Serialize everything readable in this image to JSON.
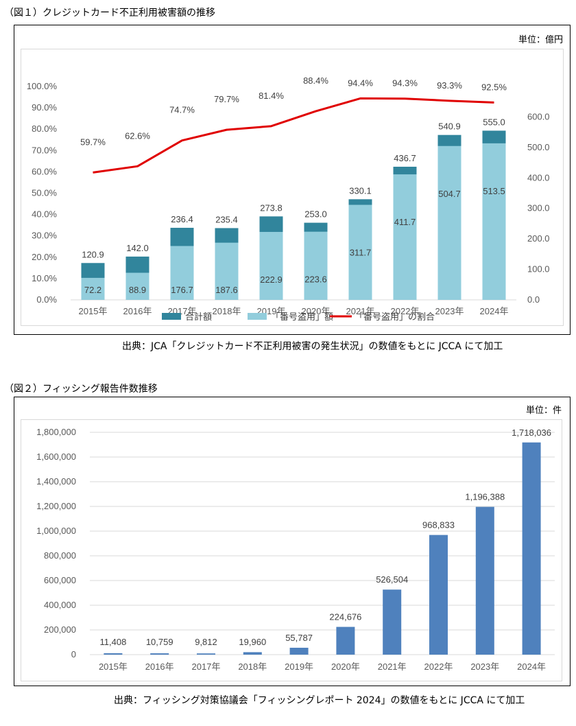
{
  "figure1": {
    "title": "（図１）クレジットカード不正利用被害額の推移",
    "unit": "単位：億円",
    "source": "出典：JCA「クレジットカード不正利用被害の発生状況」の数値をもとに JCCA にて加工",
    "chart_data": {
      "type": "bar",
      "categories": [
        "2015年",
        "2016年",
        "2017年",
        "2018年",
        "2019年",
        "2020年",
        "2021年",
        "2022年",
        "2023年",
        "2024年"
      ],
      "series": [
        {
          "name": "合計額",
          "values": [
            120.9,
            142.0,
            236.4,
            235.4,
            273.8,
            253.0,
            330.1,
            436.7,
            540.9,
            555.0
          ],
          "color": "#31859c"
        },
        {
          "name": "「番号盗用」額",
          "values": [
            72.2,
            88.9,
            176.7,
            187.6,
            222.9,
            223.6,
            311.7,
            411.7,
            504.7,
            513.5
          ],
          "color": "#92cddc"
        },
        {
          "name": "「番号盗用」の割合",
          "type": "line",
          "values": [
            59.7,
            62.6,
            74.7,
            79.7,
            81.4,
            88.4,
            94.4,
            94.3,
            93.3,
            92.5
          ],
          "color": "#e00000"
        }
      ],
      "left_axis": {
        "ticks": [
          "100.0%",
          "90.0%",
          "80.0%",
          "70.0%",
          "60.0%",
          "50.0%",
          "40.0%",
          "30.0%",
          "20.0%",
          "10.0%",
          "0.0%"
        ],
        "ylim": [
          0,
          100
        ]
      },
      "right_axis": {
        "ticks": [
          "600.0",
          "500.0",
          "400.0",
          "300.0",
          "200.0",
          "100.0",
          "0.0"
        ],
        "ylim": [
          0,
          700
        ]
      },
      "total_labels": [
        "120.9",
        "142.0",
        "236.4",
        "235.4",
        "273.8",
        "253.0",
        "330.1",
        "436.7",
        "540.9",
        "555.0"
      ],
      "theft_labels": [
        "72.2",
        "88.9",
        "176.7",
        "187.6",
        "222.9",
        "223.6",
        "311.7",
        "411.7",
        "504.7",
        "513.5"
      ],
      "ratio_labels": [
        "59.7%",
        "62.6%",
        "74.7%",
        "79.7%",
        "81.4%",
        "88.4%",
        "94.4%",
        "94.3%",
        "93.3%",
        "92.5%"
      ],
      "legend": [
        "合計額",
        "「番号盗用」額",
        "「番号盗用」の割合"
      ]
    }
  },
  "figure2": {
    "title": "（図２）フィッシング報告件数推移",
    "unit": "単位：件",
    "source": "出典：フィッシング対策協議会「フィッシングレポート 2024」の数値をもとに JCCA にて加工",
    "chart_data": {
      "type": "bar",
      "categories": [
        "2015年",
        "2016年",
        "2017年",
        "2018年",
        "2019年",
        "2020年",
        "2021年",
        "2022年",
        "2023年",
        "2024年"
      ],
      "values": [
        11408,
        10759,
        9812,
        19960,
        55787,
        224676,
        526504,
        968833,
        1196388,
        1718036
      ],
      "value_labels": [
        "11,408",
        "10,759",
        "9,812",
        "19,960",
        "55,787",
        "224,676",
        "526,504",
        "968,833",
        "1,196,388",
        "1,718,036"
      ],
      "y_ticks": [
        "1,800,000",
        "1,600,000",
        "1,400,000",
        "1,200,000",
        "1,000,000",
        "800,000",
        "600,000",
        "400,000",
        "200,000",
        "0"
      ],
      "ylim": [
        0,
        1800000
      ],
      "color": "#4f81bd"
    }
  }
}
